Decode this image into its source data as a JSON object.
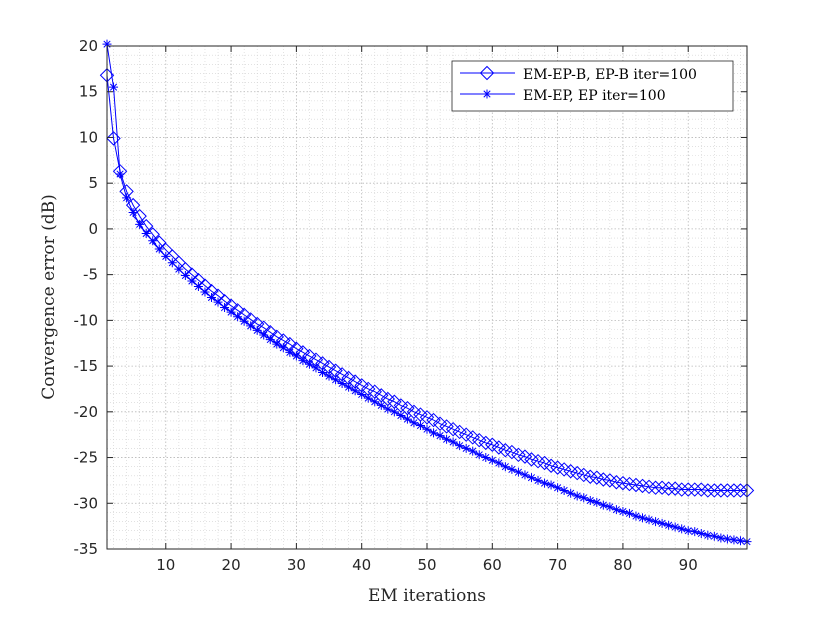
{
  "chart_data": {
    "type": "line",
    "title": "",
    "xlabel": "EM iterations",
    "ylabel": "Convergence error (dB)",
    "xlim": [
      1,
      99
    ],
    "ylim": [
      -35,
      20
    ],
    "xticks": [
      10,
      20,
      30,
      40,
      50,
      60,
      70,
      80,
      90
    ],
    "yticks": [
      20,
      15,
      10,
      5,
      0,
      -5,
      -10,
      -15,
      -20,
      -25,
      -30,
      -35
    ],
    "grid": "major and minor, dotted",
    "legend_position": "top-right",
    "x": [
      1,
      2,
      3,
      4,
      5,
      6,
      7,
      8,
      9,
      10,
      11,
      12,
      13,
      14,
      15,
      16,
      17,
      18,
      19,
      20,
      21,
      22,
      23,
      24,
      25,
      26,
      27,
      28,
      29,
      30,
      31,
      32,
      33,
      34,
      35,
      36,
      37,
      38,
      39,
      40,
      41,
      42,
      43,
      44,
      45,
      46,
      47,
      48,
      49,
      50,
      51,
      52,
      53,
      54,
      55,
      56,
      57,
      58,
      59,
      60,
      61,
      62,
      63,
      64,
      65,
      66,
      67,
      68,
      69,
      70,
      71,
      72,
      73,
      74,
      75,
      76,
      77,
      78,
      79,
      80,
      81,
      82,
      83,
      84,
      85,
      86,
      87,
      88,
      89,
      90,
      91,
      92,
      93,
      94,
      95,
      96,
      97,
      98,
      99
    ],
    "series": [
      {
        "name": "EM-EP-B, EP-B iter=100",
        "color": "#0000ff",
        "marker": "diamond",
        "values": [
          16.8,
          9.9,
          6.3,
          4.1,
          2.6,
          1.4,
          0.3,
          -0.6,
          -1.5,
          -2.3,
          -3.0,
          -3.7,
          -4.4,
          -5.0,
          -5.6,
          -6.2,
          -6.8,
          -7.3,
          -7.9,
          -8.4,
          -8.9,
          -9.4,
          -9.9,
          -10.4,
          -10.8,
          -11.3,
          -11.8,
          -12.2,
          -12.6,
          -13.1,
          -13.5,
          -13.9,
          -14.3,
          -14.7,
          -15.1,
          -15.5,
          -15.9,
          -16.3,
          -16.7,
          -17.1,
          -17.5,
          -17.8,
          -18.2,
          -18.6,
          -18.9,
          -19.3,
          -19.6,
          -20.0,
          -20.3,
          -20.6,
          -20.9,
          -21.3,
          -21.6,
          -21.9,
          -22.2,
          -22.5,
          -22.8,
          -23.1,
          -23.4,
          -23.6,
          -23.9,
          -24.2,
          -24.4,
          -24.7,
          -24.9,
          -25.2,
          -25.4,
          -25.6,
          -25.9,
          -26.1,
          -26.3,
          -26.5,
          -26.7,
          -26.9,
          -27.1,
          -27.2,
          -27.4,
          -27.5,
          -27.7,
          -27.8,
          -27.9,
          -28.0,
          -28.1,
          -28.2,
          -28.3,
          -28.3,
          -28.4,
          -28.4,
          -28.5,
          -28.5,
          -28.5,
          -28.5,
          -28.6,
          -28.6,
          -28.6,
          -28.6,
          -28.6,
          -28.6,
          -28.6
        ]
      },
      {
        "name": "EM-EP, EP iter=100",
        "color": "#0000ff",
        "marker": "asterisk",
        "values": [
          20.2,
          15.5,
          6.0,
          3.4,
          1.8,
          0.5,
          -0.5,
          -1.3,
          -2.2,
          -3.0,
          -3.7,
          -4.4,
          -5.1,
          -5.7,
          -6.3,
          -6.9,
          -7.5,
          -8.0,
          -8.6,
          -9.1,
          -9.6,
          -10.1,
          -10.6,
          -11.1,
          -11.6,
          -12.1,
          -12.6,
          -13.0,
          -13.5,
          -13.9,
          -14.4,
          -14.8,
          -15.2,
          -15.7,
          -16.1,
          -16.5,
          -16.9,
          -17.3,
          -17.7,
          -18.1,
          -18.5,
          -18.9,
          -19.3,
          -19.7,
          -20.0,
          -20.4,
          -20.8,
          -21.2,
          -21.5,
          -21.9,
          -22.3,
          -22.6,
          -23.0,
          -23.3,
          -23.7,
          -24.0,
          -24.3,
          -24.7,
          -25.0,
          -25.3,
          -25.6,
          -26.0,
          -26.3,
          -26.6,
          -26.9,
          -27.2,
          -27.5,
          -27.8,
          -28.0,
          -28.3,
          -28.6,
          -28.9,
          -29.2,
          -29.4,
          -29.7,
          -29.9,
          -30.2,
          -30.4,
          -30.7,
          -30.9,
          -31.1,
          -31.4,
          -31.6,
          -31.8,
          -32.0,
          -32.2,
          -32.4,
          -32.6,
          -32.8,
          -33.0,
          -33.1,
          -33.3,
          -33.5,
          -33.6,
          -33.8,
          -33.9,
          -34.0,
          -34.1,
          -34.2
        ]
      }
    ]
  }
}
